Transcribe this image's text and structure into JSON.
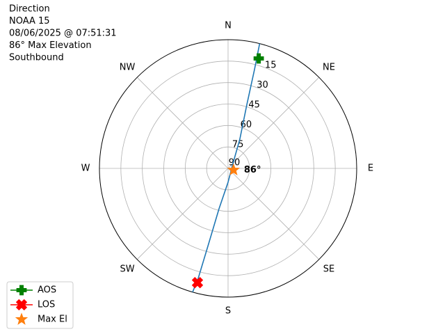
{
  "chart_data": {
    "type": "polar",
    "title_lines": [
      "Direction",
      "NOAA 15",
      "08/06/2025 @ 07:51:31",
      "86° Max Elevation",
      "Southbound"
    ],
    "rlim": [
      90,
      0
    ],
    "rticks": [
      90,
      75,
      60,
      45,
      30,
      15
    ],
    "thetaticks": [
      {
        "value": 0,
        "label": "N"
      },
      {
        "value": 45,
        "label": "NE"
      },
      {
        "value": 90,
        "label": "E"
      },
      {
        "value": 135,
        "label": "SE"
      },
      {
        "value": 180,
        "label": "S"
      },
      {
        "value": 225,
        "label": "SW"
      },
      {
        "value": 270,
        "label": "W"
      },
      {
        "value": 315,
        "label": "NW"
      }
    ],
    "grid": true,
    "track": {
      "color": "#1f77b4",
      "azimuth": [
        14.2,
        15,
        16.4,
        22,
        45,
        180,
        192.6,
        194.5,
        195.2,
        196
      ],
      "elevation": [
        0,
        18.5,
        43.3,
        68,
        85.2,
        80.3,
        61.1,
        35.7,
        10.4,
        0
      ]
    },
    "series": [
      {
        "name": "AOS",
        "color": "#008000",
        "marker": "plus",
        "azimuth": 15.6,
        "elevation": 10.2
      },
      {
        "name": "LOS",
        "color": "#ff0000",
        "marker": "x",
        "azimuth": 195,
        "elevation": 7.3
      },
      {
        "name": "Max El",
        "color": "#ff7f0e",
        "marker": "star",
        "azimuth": 106,
        "elevation": 86
      }
    ],
    "annotation": "86°",
    "legend": "lower left"
  }
}
